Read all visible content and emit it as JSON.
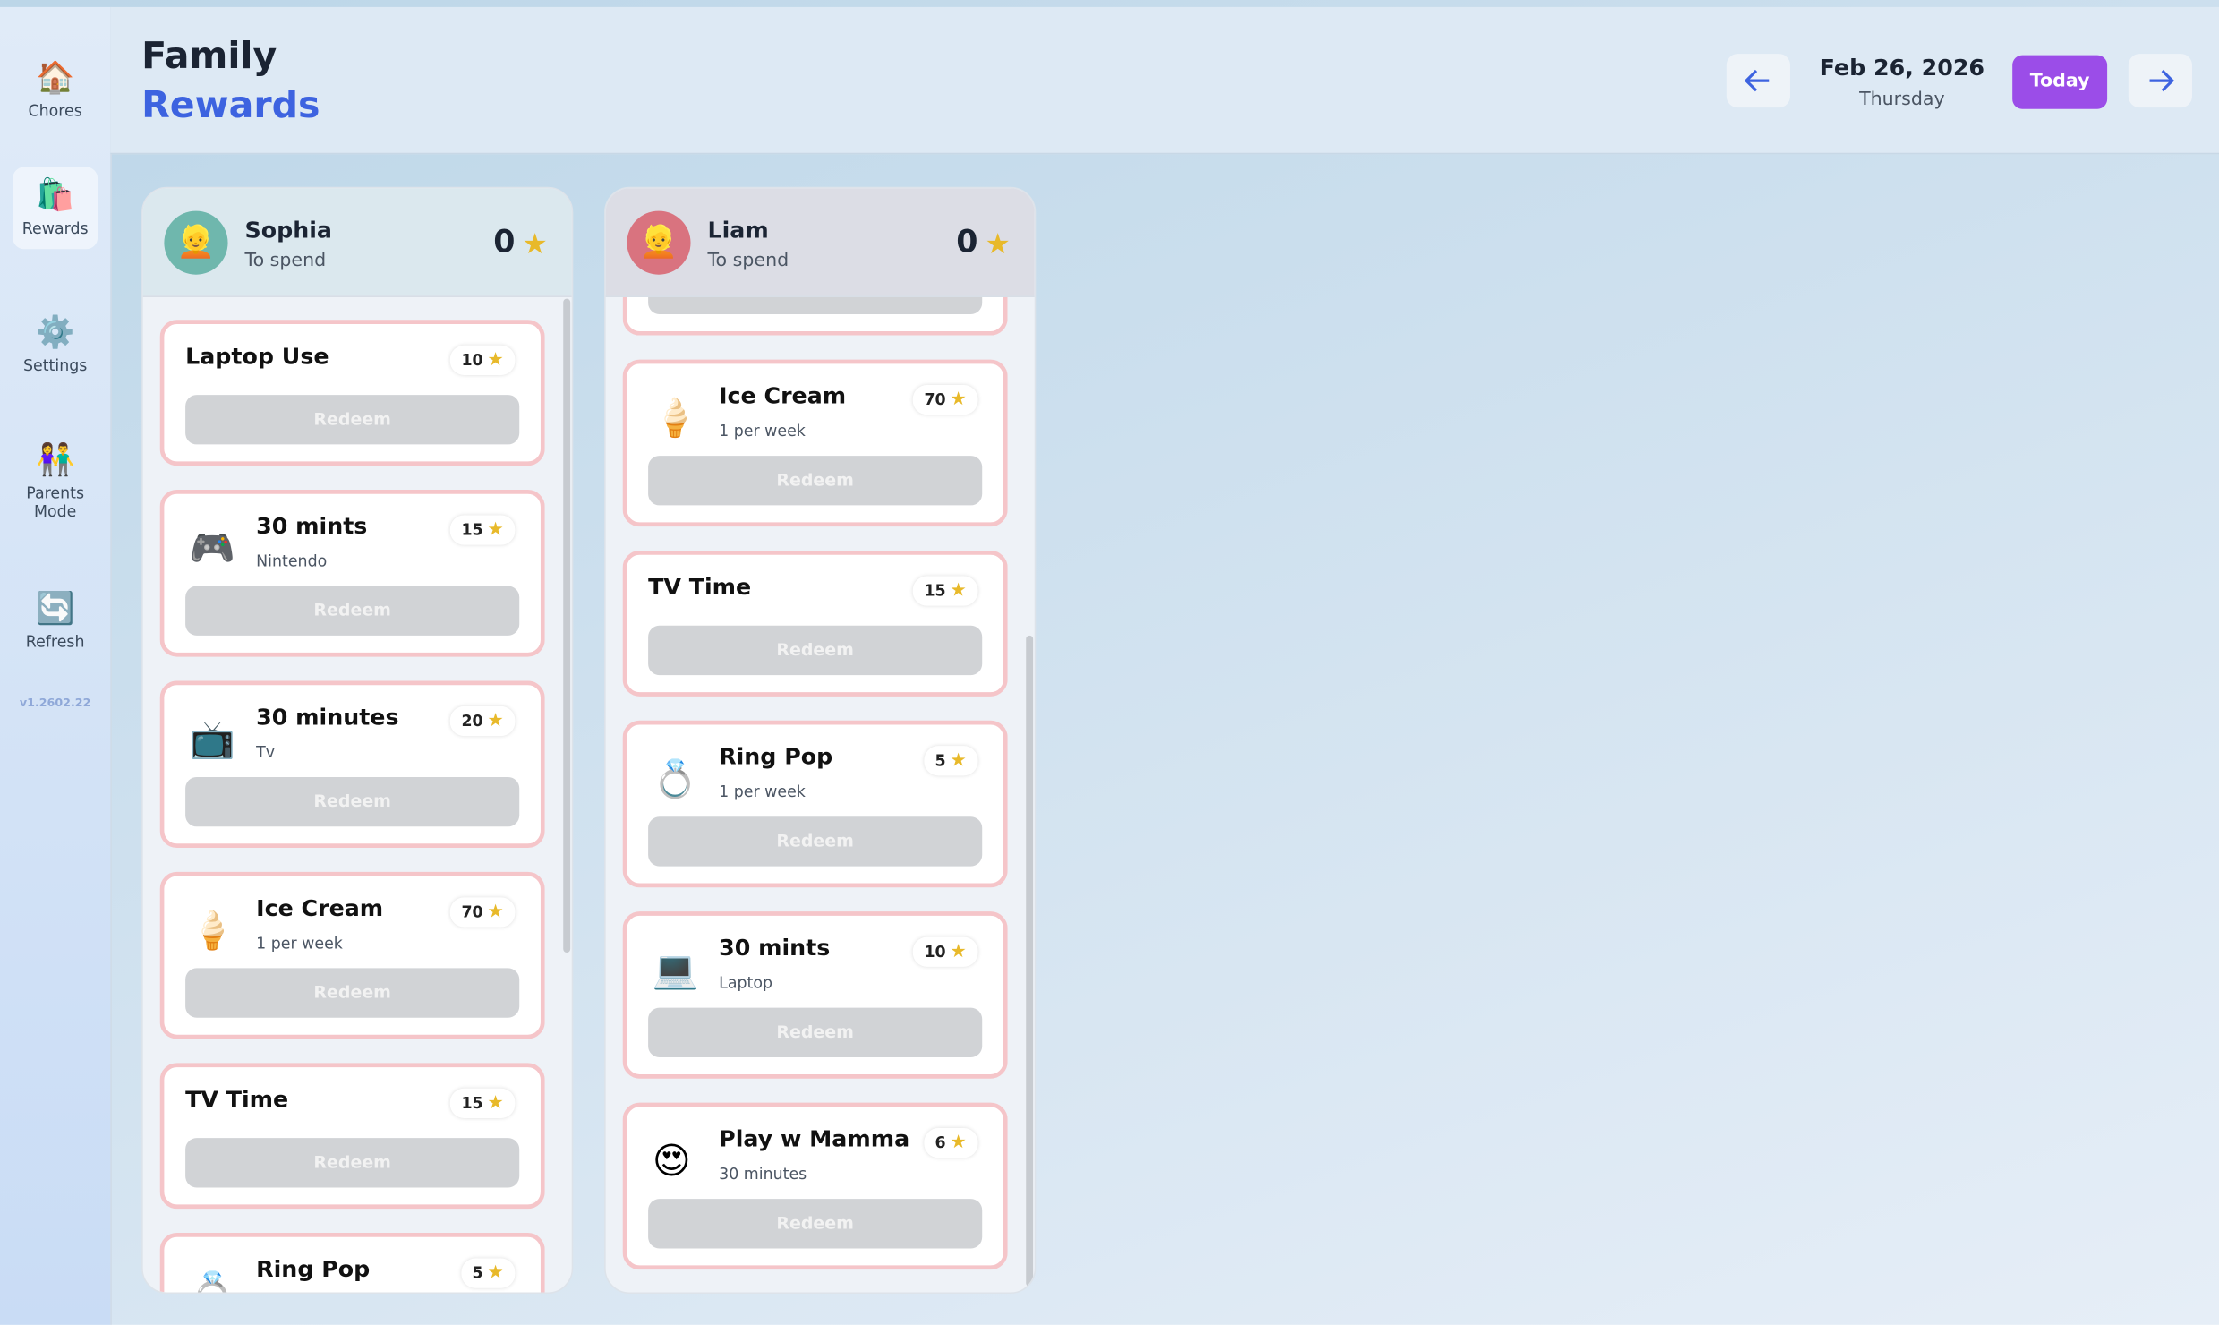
{
  "sidebar": {
    "items": [
      {
        "icon": "🏠",
        "label": "Chores"
      },
      {
        "icon": "🛍️",
        "label": "Rewards"
      },
      {
        "icon": "⚙️",
        "label": "Settings"
      },
      {
        "icon": "👫",
        "label": "Parents Mode"
      },
      {
        "icon": "🔄",
        "label": "Refresh"
      }
    ],
    "version": "v1.2602.22"
  },
  "header": {
    "title_line1": "Family",
    "title_line2": "Rewards",
    "date": "Feb 26, 2026",
    "weekday": "Thursday",
    "today_button": "Today"
  },
  "redeem_label": "Redeem",
  "kids": [
    {
      "name": "Sophia",
      "avatar": "👱",
      "subtitle": "To spend",
      "balance": 0,
      "rewards": [
        {
          "title": "Laptop Use",
          "cost": 10
        },
        {
          "icon": "🎮",
          "title": "30 mints",
          "subtitle": "Nintendo",
          "cost": 15
        },
        {
          "icon": "📺",
          "title": "30 minutes",
          "subtitle": "Tv",
          "cost": 20
        },
        {
          "icon": "🍦",
          "title": "Ice Cream",
          "subtitle": "1 per week",
          "cost": 70
        },
        {
          "title": "TV Time",
          "cost": 15
        },
        {
          "icon": "💍",
          "title": "Ring Pop",
          "cost": 5
        }
      ]
    },
    {
      "name": "Liam",
      "avatar": "👱",
      "subtitle": "To spend",
      "balance": 0,
      "rewards": [
        {
          "icon": "🍦",
          "title": "Ice Cream",
          "subtitle": "1 per week",
          "cost": 70
        },
        {
          "title": "TV Time",
          "cost": 15
        },
        {
          "icon": "💍",
          "title": "Ring Pop",
          "subtitle": "1 per week",
          "cost": 5
        },
        {
          "icon": "💻",
          "title": "30 mints",
          "subtitle": "Laptop",
          "cost": 10
        },
        {
          "icon": "😍",
          "title": "Play w Mamma",
          "subtitle": "30 minutes",
          "cost": 6
        }
      ]
    }
  ]
}
